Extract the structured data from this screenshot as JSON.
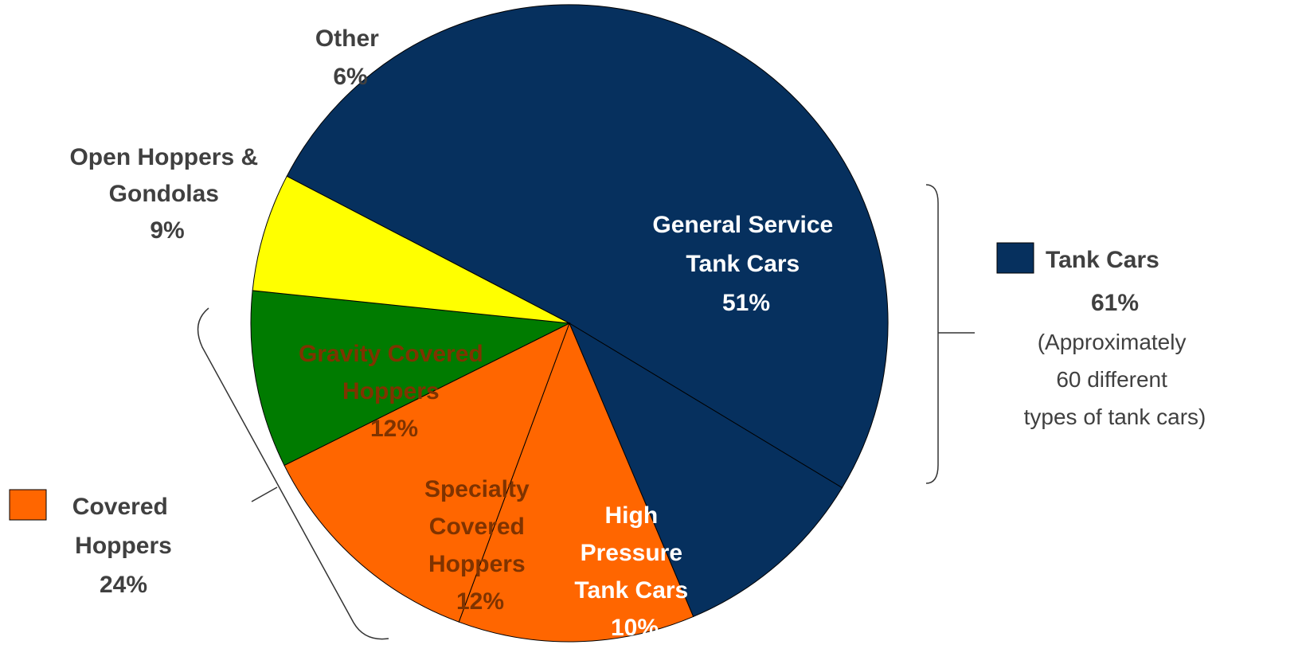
{
  "chart_data": {
    "type": "pie",
    "title": "",
    "slices": [
      {
        "key": "general_service",
        "lines": [
          "General Service",
          "Tank Cars",
          "51%"
        ],
        "value": 51,
        "color": "#06305E"
      },
      {
        "key": "high_pressure",
        "lines": [
          "High",
          "Pressure",
          "Tank Cars",
          "10%"
        ],
        "value": 10,
        "color": "#06305E"
      },
      {
        "key": "specialty_covered",
        "lines": [
          "Specialty",
          "Covered",
          "Hoppers",
          "12%"
        ],
        "value": 12,
        "color": "#FF6600"
      },
      {
        "key": "gravity_covered",
        "lines": [
          "Gravity Covered",
          "Hoppers",
          "12%"
        ],
        "value": 12,
        "color": "#FF6600"
      },
      {
        "key": "open_hoppers",
        "lines": [
          "Open Hoppers &",
          "Gondolas",
          "9%"
        ],
        "value": 9,
        "color": "#007B00"
      },
      {
        "key": "other",
        "lines": [
          "Other",
          "6%"
        ],
        "value": 6,
        "color": "#FFFF00"
      }
    ],
    "groups": [
      {
        "key": "tank_cars",
        "label": "Tank Cars",
        "percent": "61%",
        "note": [
          "(Approximately",
          "60 different",
          "types of tank cars)"
        ],
        "color": "#06305E"
      },
      {
        "key": "covered_hoppers",
        "label": [
          "Covered",
          "Hoppers"
        ],
        "percent": "24%",
        "color": "#FF6600"
      }
    ]
  }
}
